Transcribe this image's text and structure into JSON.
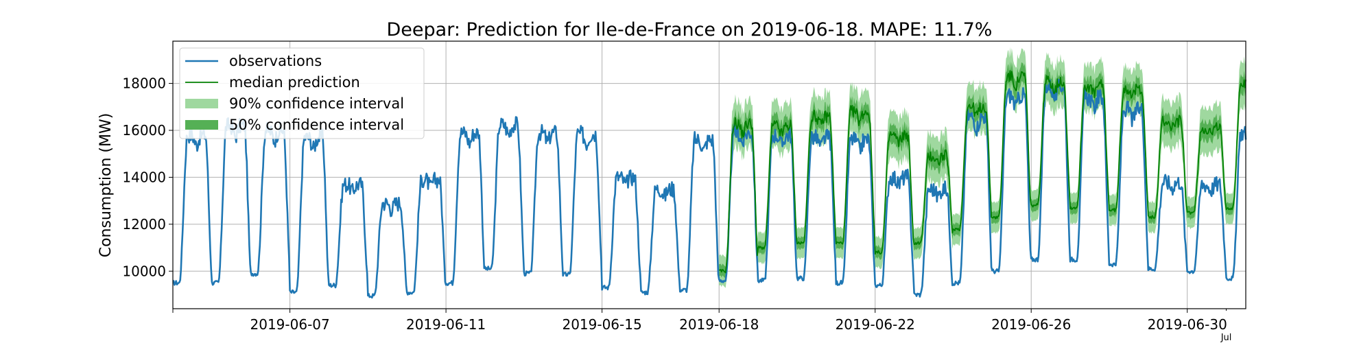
{
  "chart_data": {
    "type": "line",
    "title": "Deepar: Prediction for Ile-de-France on 2019-06-18. MAPE: 11.7%",
    "ylabel": "Consumption (MW)",
    "xlabel": "",
    "x_range": [
      "2019-06-04",
      "2019-07-01T12:00"
    ],
    "ylim": [
      8400,
      19800
    ],
    "grid": true,
    "legend_position": "top-left",
    "x_ticks": [
      "2019-06-07",
      "2019-06-11",
      "2019-06-15",
      "2019-06-18",
      "2019-06-22",
      "2019-06-26",
      "2019-06-30"
    ],
    "x_minor_label": {
      "date": "2019-07-01",
      "text": "Jul"
    },
    "y_ticks": [
      10000,
      12000,
      14000,
      16000,
      18000
    ],
    "forecast_start": "2019-06-18",
    "series": [
      {
        "name": "observations",
        "color": "#1f77b4",
        "daily": [
          {
            "date": "2019-06-04",
            "min": 9500,
            "max": 15800
          },
          {
            "date": "2019-06-05",
            "min": 9500,
            "max": 16200
          },
          {
            "date": "2019-06-06",
            "min": 9900,
            "max": 16000
          },
          {
            "date": "2019-06-07",
            "min": 9100,
            "max": 15700
          },
          {
            "date": "2019-06-08",
            "min": 9400,
            "max": 13700
          },
          {
            "date": "2019-06-09",
            "min": 8950,
            "max": 12900
          },
          {
            "date": "2019-06-10",
            "min": 9100,
            "max": 13900
          },
          {
            "date": "2019-06-11",
            "min": 9500,
            "max": 15900
          },
          {
            "date": "2019-06-12",
            "min": 10100,
            "max": 16250
          },
          {
            "date": "2019-06-13",
            "min": 9900,
            "max": 15900
          },
          {
            "date": "2019-06-14",
            "min": 9850,
            "max": 15850
          },
          {
            "date": "2019-06-15",
            "min": 9300,
            "max": 14000
          },
          {
            "date": "2019-06-16",
            "min": 9100,
            "max": 13500
          },
          {
            "date": "2019-06-17",
            "min": 9200,
            "max": 15600
          },
          {
            "date": "2019-06-18",
            "min": 9600,
            "max": 15900
          },
          {
            "date": "2019-06-19",
            "min": 9600,
            "max": 15800
          },
          {
            "date": "2019-06-20",
            "min": 9700,
            "max": 15700
          },
          {
            "date": "2019-06-21",
            "min": 9500,
            "max": 15600
          },
          {
            "date": "2019-06-22",
            "min": 9400,
            "max": 14000
          },
          {
            "date": "2019-06-23",
            "min": 9000,
            "max": 13500
          },
          {
            "date": "2019-06-24",
            "min": 9500,
            "max": 16600
          },
          {
            "date": "2019-06-25",
            "min": 10000,
            "max": 17500
          },
          {
            "date": "2019-06-26",
            "min": 10500,
            "max": 17900
          },
          {
            "date": "2019-06-27",
            "min": 10500,
            "max": 17400
          },
          {
            "date": "2019-06-28",
            "min": 10300,
            "max": 16900
          },
          {
            "date": "2019-06-29",
            "min": 10100,
            "max": 13800
          },
          {
            "date": "2019-06-30",
            "min": 10000,
            "max": 13700
          },
          {
            "date": "2019-07-01",
            "min": 9700,
            "max": 15900
          }
        ]
      },
      {
        "name": "median prediction",
        "color": "#008000",
        "daily": [
          {
            "date": "2019-06-18",
            "min": 10000,
            "max": 16300
          },
          {
            "date": "2019-06-19",
            "min": 11000,
            "max": 16200
          },
          {
            "date": "2019-06-20",
            "min": 11200,
            "max": 16600
          },
          {
            "date": "2019-06-21",
            "min": 11200,
            "max": 16800
          },
          {
            "date": "2019-06-22",
            "min": 10800,
            "max": 15800
          },
          {
            "date": "2019-06-23",
            "min": 11200,
            "max": 14900
          },
          {
            "date": "2019-06-24",
            "min": 11800,
            "max": 17000
          },
          {
            "date": "2019-06-25",
            "min": 12300,
            "max": 18300
          },
          {
            "date": "2019-06-26",
            "min": 12800,
            "max": 18100
          },
          {
            "date": "2019-06-27",
            "min": 12700,
            "max": 17900
          },
          {
            "date": "2019-06-28",
            "min": 12600,
            "max": 17800
          },
          {
            "date": "2019-06-29",
            "min": 12300,
            "max": 16400
          },
          {
            "date": "2019-06-30",
            "min": 12500,
            "max": 16100
          },
          {
            "date": "2019-07-01",
            "min": 12700,
            "max": 18000
          }
        ]
      }
    ],
    "bands": [
      {
        "name": "90% confidence interval",
        "color": "#9fd89f",
        "half_width_min": 650,
        "half_width_max": 1000
      },
      {
        "name": "50% confidence interval",
        "color": "#55b055",
        "half_width_min": 250,
        "half_width_max": 400
      }
    ]
  }
}
